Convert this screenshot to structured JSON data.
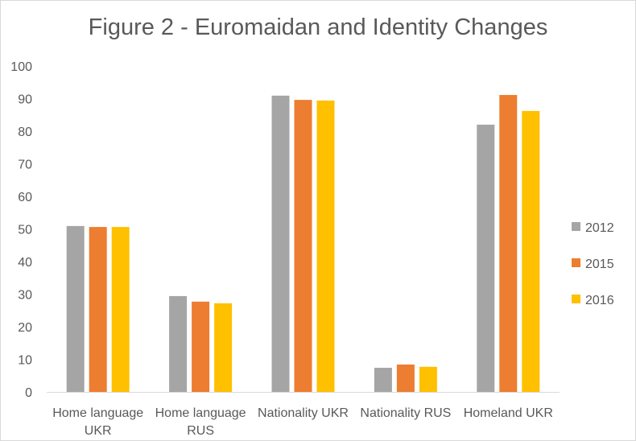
{
  "chart_data": {
    "type": "bar",
    "title": "Figure 2 - Euromaidan and Identity Changes",
    "xlabel": "",
    "ylabel": "",
    "ylim": [
      0,
      100
    ],
    "yticks": [
      0,
      10,
      20,
      30,
      40,
      50,
      60,
      70,
      80,
      90,
      100
    ],
    "grid": false,
    "legend_position": "right",
    "categories": [
      [
        "Home language",
        "UKR"
      ],
      [
        "Home language",
        "RUS"
      ],
      [
        "Nationality UKR"
      ],
      [
        "Nationality RUS"
      ],
      [
        "Homeland UKR"
      ]
    ],
    "series": [
      {
        "name": "2012",
        "color": "#a5a5a5",
        "values": [
          50.9,
          29.4,
          90.9,
          7.4,
          82.0
        ]
      },
      {
        "name": "2015",
        "color": "#ed7d31",
        "values": [
          50.6,
          27.7,
          89.6,
          8.4,
          91.1
        ]
      },
      {
        "name": "2016",
        "color": "#ffc000",
        "values": [
          50.6,
          27.2,
          89.4,
          7.7,
          86.2
        ]
      }
    ]
  }
}
